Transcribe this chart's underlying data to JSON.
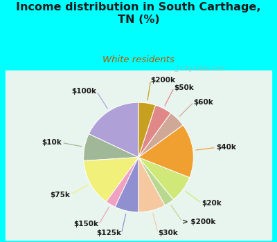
{
  "title": "Income distribution in South Carthage,\nTN (%)",
  "subtitle": "White residents",
  "title_color": "#1a1a1a",
  "subtitle_color": "#b05a00",
  "background_color": "#00ffff",
  "chart_bg_start": "#d8f0e8",
  "chart_bg_end": "#f0faf5",
  "watermark": "ⓘ City-Data.com",
  "labels": [
    "$100k",
    "$10k",
    "$75k",
    "$150k",
    "$125k",
    "$30k",
    "> $200k",
    "$20k",
    "$40k",
    "$60k",
    "$50k",
    "$200k"
  ],
  "values": [
    18,
    8,
    14,
    3,
    7,
    8,
    3,
    8,
    16,
    5,
    5,
    5
  ],
  "colors": [
    "#b0a0d8",
    "#a0b898",
    "#f0f07a",
    "#f0a0c0",
    "#9090d0",
    "#f5c8a0",
    "#b8d890",
    "#d0e878",
    "#f0a030",
    "#d0a898",
    "#e08888",
    "#c8a020"
  ],
  "startangle": 90,
  "label_fontsize": 7.5,
  "title_fontsize": 11.5,
  "subtitle_fontsize": 9.5
}
